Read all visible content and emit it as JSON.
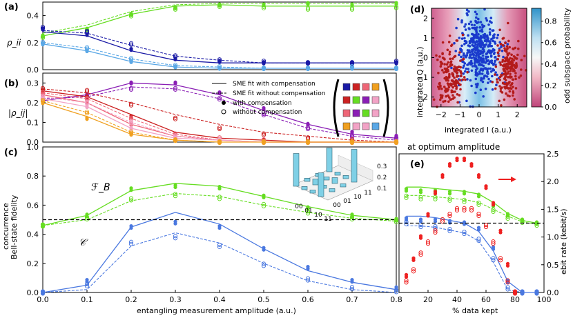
{
  "colors": {
    "green": "#66dd22",
    "navy": "#1a1aa6",
    "lightblue": "#5ba8e6",
    "purple": "#8a1eb5",
    "red": "#cc2222",
    "salmon": "#ee6677",
    "pink": "#f2a3c6",
    "orange": "#f0a020",
    "steel": "#4a78e0",
    "brightred": "#ee2020",
    "dotblue": "#1a3acc",
    "dotred": "#b31b1b"
  },
  "chart_data": [
    {
      "id": "a",
      "type": "scatter",
      "panel_label": "(a)",
      "ylabel": "ρ_ii",
      "xlim": [
        0,
        0.8
      ],
      "ylim": [
        0,
        0.5
      ],
      "yticks": [
        "0.0",
        "0.2",
        "0.4"
      ],
      "series": [
        {
          "name": "rho_00",
          "color": "green",
          "x": [
            0.0,
            0.1,
            0.2,
            0.3,
            0.4,
            0.5,
            0.6,
            0.7,
            0.8
          ],
          "fit_comp": [
            0.25,
            0.31,
            0.41,
            0.47,
            0.48,
            0.47,
            0.47,
            0.47,
            0.47
          ],
          "fit_nocomp": [
            0.27,
            0.33,
            0.43,
            0.48,
            0.49,
            0.49,
            0.49,
            0.49,
            0.49
          ],
          "y_comp": [
            0.25,
            0.3,
            0.41,
            0.46,
            0.48,
            0.48,
            0.49,
            0.48,
            0.49
          ],
          "y_nocomp": [
            0.24,
            0.29,
            0.4,
            0.45,
            0.47,
            0.46,
            0.45,
            0.45,
            0.46
          ]
        },
        {
          "name": "rho_01",
          "color": "navy",
          "x": [
            0.0,
            0.1,
            0.2,
            0.3,
            0.4,
            0.5,
            0.6,
            0.7,
            0.8
          ],
          "fit_comp": [
            0.28,
            0.25,
            0.14,
            0.07,
            0.05,
            0.05,
            0.05,
            0.05,
            0.05
          ],
          "fit_nocomp": [
            0.29,
            0.27,
            0.18,
            0.1,
            0.07,
            0.05,
            0.05,
            0.05,
            0.05
          ],
          "y_comp": [
            0.3,
            0.26,
            0.15,
            0.08,
            0.06,
            0.05,
            0.05,
            0.05,
            0.05
          ],
          "y_nocomp": [
            0.31,
            0.28,
            0.19,
            0.1,
            0.07,
            0.06,
            0.05,
            0.05,
            0.06
          ]
        },
        {
          "name": "rho_11",
          "color": "lightblue",
          "x": [
            0.0,
            0.1,
            0.2,
            0.3,
            0.4,
            0.5,
            0.6,
            0.7,
            0.8
          ],
          "fit_comp": [
            0.19,
            0.14,
            0.06,
            0.02,
            0.01,
            0.01,
            0.01,
            0.01,
            0.01
          ],
          "fit_nocomp": [
            0.2,
            0.16,
            0.08,
            0.03,
            0.02,
            0.01,
            0.01,
            0.01,
            0.01
          ],
          "y_comp": [
            0.19,
            0.14,
            0.06,
            0.02,
            0.01,
            0.01,
            0.01,
            0.01,
            0.01
          ],
          "y_nocomp": [
            0.2,
            0.16,
            0.08,
            0.03,
            0.02,
            0.01,
            0.01,
            0.02,
            0.01
          ]
        }
      ]
    },
    {
      "id": "b",
      "type": "scatter",
      "panel_label": "(b)",
      "ylabel": "|ρ_ij|",
      "xlim": [
        0,
        0.8
      ],
      "ylim": [
        0,
        0.35
      ],
      "yticks": [
        "0.0",
        "0.1",
        "0.2",
        "0.3"
      ],
      "legend": [
        "SME fit with compensation",
        "SME fit without compensation",
        "with compensation",
        "without compensation"
      ],
      "series": [
        {
          "name": "purple",
          "color": "purple",
          "x": [
            0.0,
            0.1,
            0.2,
            0.3,
            0.4,
            0.5,
            0.6,
            0.7,
            0.8
          ],
          "fit_comp": [
            0.21,
            0.24,
            0.3,
            0.29,
            0.24,
            0.16,
            0.09,
            0.04,
            0.02
          ],
          "fit_nocomp": [
            0.22,
            0.23,
            0.28,
            0.27,
            0.22,
            0.14,
            0.07,
            0.03,
            0.01
          ],
          "y_comp": [
            0.21,
            0.24,
            0.3,
            0.3,
            0.25,
            0.17,
            0.09,
            0.05,
            0.03
          ],
          "y_nocomp": [
            0.22,
            0.23,
            0.27,
            0.27,
            0.22,
            0.14,
            0.07,
            0.03,
            0.02
          ]
        },
        {
          "name": "red",
          "color": "red",
          "x": [
            0.0,
            0.1,
            0.2,
            0.3,
            0.4,
            0.5,
            0.6,
            0.7,
            0.8
          ],
          "fit_comp": [
            0.26,
            0.23,
            0.14,
            0.05,
            0.02,
            0.01,
            0.0,
            0.0,
            0.0
          ],
          "fit_nocomp": [
            0.27,
            0.25,
            0.2,
            0.14,
            0.09,
            0.05,
            0.03,
            0.01,
            0.0
          ],
          "y_comp": [
            0.26,
            0.23,
            0.13,
            0.04,
            0.01,
            0.01,
            0.0,
            0.0,
            0.0
          ],
          "y_nocomp": [
            0.27,
            0.26,
            0.19,
            0.12,
            0.07,
            0.04,
            0.02,
            0.01,
            0.0
          ]
        },
        {
          "name": "salmon",
          "color": "salmon",
          "x": [
            0.0,
            0.1,
            0.2,
            0.3,
            0.4,
            0.5,
            0.6,
            0.7,
            0.8
          ],
          "fit_comp": [
            0.24,
            0.2,
            0.09,
            0.03,
            0.01,
            0.0,
            0.0,
            0.0,
            0.0
          ],
          "fit_nocomp": [
            0.25,
            0.22,
            0.12,
            0.04,
            0.01,
            0.0,
            0.0,
            0.0,
            0.0
          ],
          "y_comp": [
            0.24,
            0.2,
            0.09,
            0.03,
            0.01,
            0.0,
            0.0,
            0.0,
            0.0
          ],
          "y_nocomp": [
            0.25,
            0.22,
            0.12,
            0.04,
            0.02,
            0.01,
            0.0,
            0.0,
            0.0
          ]
        },
        {
          "name": "pink",
          "color": "pink",
          "x": [
            0.0,
            0.1,
            0.2,
            0.3,
            0.4,
            0.5,
            0.6,
            0.7,
            0.8
          ],
          "fit_comp": [
            0.22,
            0.18,
            0.07,
            0.02,
            0.01,
            0.0,
            0.0,
            0.0,
            0.0
          ],
          "fit_nocomp": [
            0.23,
            0.2,
            0.1,
            0.03,
            0.01,
            0.0,
            0.0,
            0.0,
            0.0
          ],
          "y_comp": [
            0.22,
            0.18,
            0.07,
            0.02,
            0.01,
            0.0,
            0.0,
            0.0,
            0.0
          ],
          "y_nocomp": [
            0.23,
            0.2,
            0.1,
            0.03,
            0.01,
            0.0,
            0.0,
            0.0,
            0.0
          ]
        },
        {
          "name": "orange",
          "color": "orange",
          "x": [
            0.0,
            0.1,
            0.2,
            0.3,
            0.4,
            0.5,
            0.6,
            0.7,
            0.8
          ],
          "fit_comp": [
            0.2,
            0.13,
            0.04,
            0.01,
            0.0,
            0.0,
            0.0,
            0.0,
            0.0
          ],
          "fit_nocomp": [
            0.21,
            0.15,
            0.05,
            0.01,
            0.0,
            0.0,
            0.0,
            0.0,
            0.0
          ],
          "y_comp": [
            0.2,
            0.12,
            0.04,
            0.01,
            0.0,
            0.0,
            0.0,
            0.0,
            0.0
          ],
          "y_nocomp": [
            0.21,
            0.15,
            0.05,
            0.01,
            0.0,
            0.0,
            0.0,
            0.0,
            0.0
          ]
        }
      ],
      "matrix_colors": [
        [
          "navy",
          "red",
          "salmon",
          "orange"
        ],
        [
          "red",
          "green",
          "purple",
          "pink"
        ],
        [
          "salmon",
          "purple",
          "green",
          "pink"
        ],
        [
          "orange",
          "pink",
          "pink",
          "lightblue"
        ]
      ]
    },
    {
      "id": "c",
      "type": "scatter",
      "panel_label": "(c)",
      "ylabel": "Bell-state fidelity",
      "ylabel2": "concurrence",
      "xlabel": "entangling measurement amplitude (a.u.)",
      "xlim": [
        0,
        0.8
      ],
      "ylim": [
        0,
        1.0
      ],
      "xticks": [
        "0.0",
        "0.1",
        "0.2",
        "0.3",
        "0.4",
        "0.5",
        "0.6",
        "0.7",
        "0.8"
      ],
      "yticks": [
        "0.0",
        "0.2",
        "0.4",
        "0.6",
        "0.8",
        "1.0"
      ],
      "threshold": 0.5,
      "series_labels": [
        "ℱ_B",
        "𝒞"
      ],
      "series": [
        {
          "name": "fidelity",
          "color": "green",
          "x": [
            0.0,
            0.1,
            0.2,
            0.3,
            0.4,
            0.5,
            0.6,
            0.7,
            0.8
          ],
          "fit_comp": [
            0.46,
            0.53,
            0.7,
            0.75,
            0.73,
            0.66,
            0.59,
            0.53,
            0.5
          ],
          "fit_nocomp": [
            0.46,
            0.5,
            0.63,
            0.68,
            0.66,
            0.6,
            0.55,
            0.51,
            0.49
          ],
          "y_comp": [
            0.46,
            0.53,
            0.71,
            0.73,
            0.72,
            0.66,
            0.58,
            0.53,
            0.5
          ],
          "y_nocomp": [
            0.46,
            0.51,
            0.64,
            0.67,
            0.65,
            0.6,
            0.55,
            0.51,
            0.49
          ]
        },
        {
          "name": "concurrence",
          "color": "steel",
          "x": [
            0.0,
            0.1,
            0.2,
            0.3,
            0.4,
            0.5,
            0.6,
            0.7,
            0.8
          ],
          "fit_comp": [
            0.0,
            0.05,
            0.45,
            0.55,
            0.47,
            0.3,
            0.15,
            0.07,
            0.02
          ],
          "fit_nocomp": [
            0.0,
            0.02,
            0.32,
            0.41,
            0.34,
            0.2,
            0.08,
            0.02,
            0.0
          ],
          "y_comp": [
            0.0,
            0.08,
            0.45,
            0.48,
            0.45,
            0.3,
            0.17,
            0.08,
            0.03
          ],
          "y_nocomp": [
            0.0,
            0.05,
            0.34,
            0.38,
            0.32,
            0.19,
            0.09,
            0.03,
            0.01
          ]
        }
      ],
      "inset": {
        "type": "bar3d",
        "labels": [
          "00",
          "01",
          "10",
          "11"
        ],
        "zticks": [
          "0.1",
          "0.2",
          "0.3"
        ],
        "diag_values": [
          0.35,
          0.05,
          0.05,
          0.35
        ]
      }
    },
    {
      "id": "d",
      "type": "scatter",
      "panel_label": "(d)",
      "xlabel": "integrated I (a.u.)",
      "ylabel": "integrated Q (a.u.)",
      "xlim": [
        -2.5,
        2.5
      ],
      "ylim": [
        -2.5,
        2.5
      ],
      "xticks": [
        "−2",
        "−1",
        "0",
        "1",
        "2"
      ],
      "yticks": [
        "−2",
        "−1",
        "0",
        "1",
        "2"
      ],
      "colorbar_label": "odd subspace probability",
      "colorbar_ticks": [
        "0.0",
        "0.2",
        "0.4",
        "0.6",
        "0.8"
      ],
      "clouds": [
        {
          "name": "even",
          "color": "dotblue",
          "cx": 0.0,
          "cy": 0.3,
          "sx": 0.55,
          "sy": 0.9,
          "n": 420
        },
        {
          "name": "odd-left",
          "color": "dotred",
          "cx": -1.5,
          "cy": -0.9,
          "sx": 0.35,
          "sy": 0.8,
          "n": 180
        },
        {
          "name": "odd-right",
          "color": "dotred",
          "cx": 1.5,
          "cy": -0.6,
          "sx": 0.3,
          "sy": 0.8,
          "n": 180
        }
      ]
    },
    {
      "id": "e",
      "type": "scatter",
      "panel_label": "(e)",
      "title": "at optimum amplitude",
      "xlabel": "% data kept",
      "ylabel_right": "ebit rate (kebit/s)",
      "xlim": [
        0,
        100
      ],
      "ylim": [
        0,
        1.0
      ],
      "ylim_right": [
        0,
        2.5
      ],
      "xticks": [
        "20",
        "40",
        "60",
        "80",
        "100"
      ],
      "yticks_right": [
        "0.0",
        "0.5",
        "1.0",
        "1.5",
        "2.0",
        "2.5"
      ],
      "series": [
        {
          "name": "fidelity",
          "color": "green",
          "x": [
            5,
            15,
            25,
            35,
            45,
            55,
            65,
            75,
            85,
            95
          ],
          "fit_comp": [
            0.76,
            0.76,
            0.75,
            0.74,
            0.73,
            0.71,
            0.65,
            0.57,
            0.52,
            0.5
          ],
          "fit_nocomp": [
            0.7,
            0.7,
            0.69,
            0.68,
            0.67,
            0.65,
            0.6,
            0.55,
            0.51,
            0.49
          ],
          "y_comp": [
            0.74,
            0.73,
            0.73,
            0.72,
            0.72,
            0.7,
            0.63,
            0.56,
            0.52,
            0.5
          ],
          "y_nocomp": [
            0.69,
            0.68,
            0.68,
            0.67,
            0.66,
            0.64,
            0.59,
            0.54,
            0.51,
            0.49
          ]
        },
        {
          "name": "concurrence",
          "color": "steel",
          "x": [
            5,
            15,
            25,
            35,
            45,
            55,
            65,
            75,
            85,
            95
          ],
          "fit_comp": [
            0.55,
            0.55,
            0.54,
            0.52,
            0.5,
            0.44,
            0.3,
            0.08,
            0.0,
            0.0
          ],
          "fit_nocomp": [
            0.48,
            0.48,
            0.47,
            0.45,
            0.43,
            0.37,
            0.22,
            0.02,
            0.0,
            0.0
          ],
          "y_comp": [
            0.53,
            0.52,
            0.52,
            0.51,
            0.5,
            0.46,
            0.32,
            0.08,
            0.0,
            0.0
          ],
          "y_nocomp": [
            0.5,
            0.48,
            0.47,
            0.45,
            0.43,
            0.38,
            0.24,
            0.03,
            0.0,
            0.0
          ]
        },
        {
          "name": "ebit_rate",
          "color": "brightred",
          "axis": "right",
          "x": [
            5,
            10,
            15,
            20,
            25,
            30,
            35,
            40,
            45,
            50,
            55,
            60,
            65,
            70,
            75,
            80
          ],
          "y_comp": [
            0.3,
            0.6,
            1.0,
            1.4,
            1.8,
            2.1,
            2.3,
            2.4,
            2.4,
            2.3,
            2.1,
            1.9,
            1.6,
            1.1,
            0.5,
            0.0
          ],
          "y_nocomp": [
            0.2,
            0.4,
            0.7,
            0.9,
            1.1,
            1.3,
            1.4,
            1.5,
            1.5,
            1.5,
            1.4,
            1.2,
            0.9,
            0.6,
            0.2,
            0.0
          ]
        }
      ]
    }
  ]
}
